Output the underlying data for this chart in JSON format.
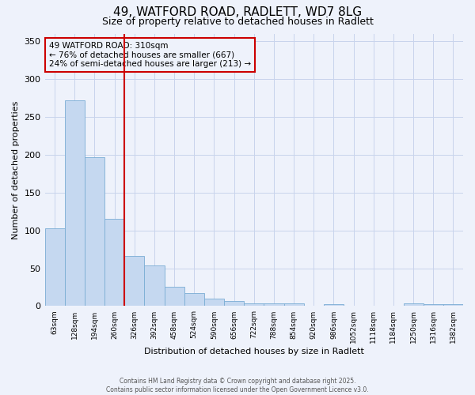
{
  "title1": "49, WATFORD ROAD, RADLETT, WD7 8LG",
  "title2": "Size of property relative to detached houses in Radlett",
  "xlabel": "Distribution of detached houses by size in Radlett",
  "ylabel": "Number of detached properties",
  "bar_color": "#c5d8f0",
  "bar_edge_color": "#7aadd4",
  "background_color": "#eef2fb",
  "grid_color": "#c8d4ec",
  "vline_color": "#cc0000",
  "vline_x_index": 4,
  "annotation_box_color": "#cc0000",
  "annotation_line1": "49 WATFORD ROAD: 310sqm",
  "annotation_line2": "← 76% of detached houses are smaller (667)",
  "annotation_line3": "24% of semi-detached houses are larger (213) →",
  "categories": [
    "63sqm",
    "128sqm",
    "194sqm",
    "260sqm",
    "326sqm",
    "392sqm",
    "458sqm",
    "524sqm",
    "590sqm",
    "656sqm",
    "722sqm",
    "788sqm",
    "854sqm",
    "920sqm",
    "986sqm",
    "1052sqm",
    "1118sqm",
    "1184sqm",
    "1250sqm",
    "1316sqm",
    "1382sqm"
  ],
  "values": [
    103,
    272,
    197,
    115,
    66,
    54,
    26,
    17,
    10,
    7,
    4,
    4,
    4,
    1,
    3,
    1,
    1,
    1,
    4,
    3,
    3
  ],
  "ylim": [
    0,
    360
  ],
  "yticks": [
    0,
    50,
    100,
    150,
    200,
    250,
    300,
    350
  ],
  "footer_line1": "Contains HM Land Registry data © Crown copyright and database right 2025.",
  "footer_line2": "Contains public sector information licensed under the Open Government Licence v3.0."
}
